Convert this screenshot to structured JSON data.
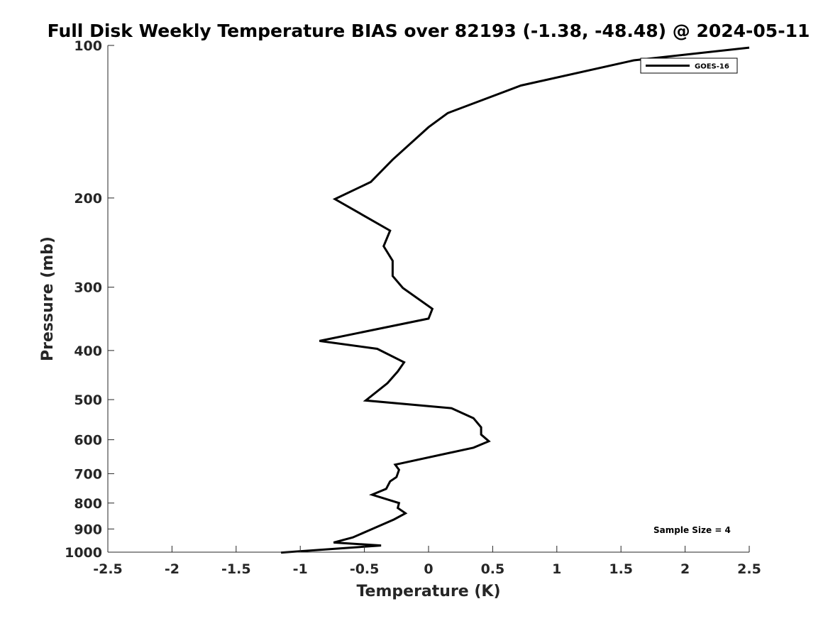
{
  "chart_data": {
    "type": "line",
    "title": "Full Disk Weekly Temperature BIAS over 82193 (-1.38, -48.48) @ 2024-05-11",
    "xlabel": "Temperature (K)",
    "ylabel": "Pressure (mb)",
    "xlim": [
      -2.5,
      2.5
    ],
    "ylim": [
      100,
      1000
    ],
    "y_scale": "log",
    "y_reversed": true,
    "grid": false,
    "legend_position": "top-right",
    "x_ticks": [
      {
        "value": -2.5,
        "label": "-2.5"
      },
      {
        "value": -2,
        "label": "-2"
      },
      {
        "value": -1.5,
        "label": "-1.5"
      },
      {
        "value": -1,
        "label": "-1"
      },
      {
        "value": -0.5,
        "label": "-0.5"
      },
      {
        "value": 0,
        "label": "0"
      },
      {
        "value": 0.5,
        "label": "0.5"
      },
      {
        "value": 1,
        "label": "1"
      },
      {
        "value": 1.5,
        "label": "1.5"
      },
      {
        "value": 2,
        "label": "2"
      },
      {
        "value": 2.5,
        "label": "2.5"
      }
    ],
    "y_ticks": [
      {
        "value": 100,
        "label": "100"
      },
      {
        "value": 200,
        "label": "200"
      },
      {
        "value": 300,
        "label": "300"
      },
      {
        "value": 400,
        "label": "400"
      },
      {
        "value": 500,
        "label": "500"
      },
      {
        "value": 600,
        "label": "600"
      },
      {
        "value": 700,
        "label": "700"
      },
      {
        "value": 800,
        "label": "800"
      },
      {
        "value": 900,
        "label": "900"
      },
      {
        "value": 1000,
        "label": "1000"
      }
    ],
    "series": [
      {
        "name": "GOES-16",
        "color": "#000000",
        "points": [
          {
            "x": 2.5,
            "y": 101
          },
          {
            "x": 1.6,
            "y": 107
          },
          {
            "x": 0.72,
            "y": 120
          },
          {
            "x": 0.15,
            "y": 136
          },
          {
            "x": 0.0,
            "y": 145
          },
          {
            "x": -0.28,
            "y": 168
          },
          {
            "x": -0.45,
            "y": 186
          },
          {
            "x": -0.73,
            "y": 201
          },
          {
            "x": -0.3,
            "y": 232
          },
          {
            "x": -0.35,
            "y": 249
          },
          {
            "x": -0.28,
            "y": 266
          },
          {
            "x": -0.28,
            "y": 285
          },
          {
            "x": -0.2,
            "y": 301
          },
          {
            "x": 0.03,
            "y": 331
          },
          {
            "x": 0.0,
            "y": 346
          },
          {
            "x": -0.85,
            "y": 383
          },
          {
            "x": -0.4,
            "y": 397
          },
          {
            "x": -0.19,
            "y": 422
          },
          {
            "x": -0.24,
            "y": 440
          },
          {
            "x": -0.32,
            "y": 464
          },
          {
            "x": -0.49,
            "y": 502
          },
          {
            "x": 0.18,
            "y": 520
          },
          {
            "x": 0.35,
            "y": 544
          },
          {
            "x": 0.41,
            "y": 567
          },
          {
            "x": 0.41,
            "y": 586
          },
          {
            "x": 0.47,
            "y": 604
          },
          {
            "x": 0.35,
            "y": 622
          },
          {
            "x": -0.26,
            "y": 672
          },
          {
            "x": -0.23,
            "y": 688
          },
          {
            "x": -0.25,
            "y": 711
          },
          {
            "x": -0.3,
            "y": 725
          },
          {
            "x": -0.33,
            "y": 750
          },
          {
            "x": -0.44,
            "y": 770
          },
          {
            "x": -0.23,
            "y": 800
          },
          {
            "x": -0.24,
            "y": 818
          },
          {
            "x": -0.18,
            "y": 838
          },
          {
            "x": -0.27,
            "y": 862
          },
          {
            "x": -0.46,
            "y": 905
          },
          {
            "x": -0.59,
            "y": 935
          },
          {
            "x": -0.74,
            "y": 957
          },
          {
            "x": -0.37,
            "y": 970
          },
          {
            "x": -1.15,
            "y": 1002
          }
        ]
      }
    ],
    "annotation": "Sample Size = 4"
  }
}
